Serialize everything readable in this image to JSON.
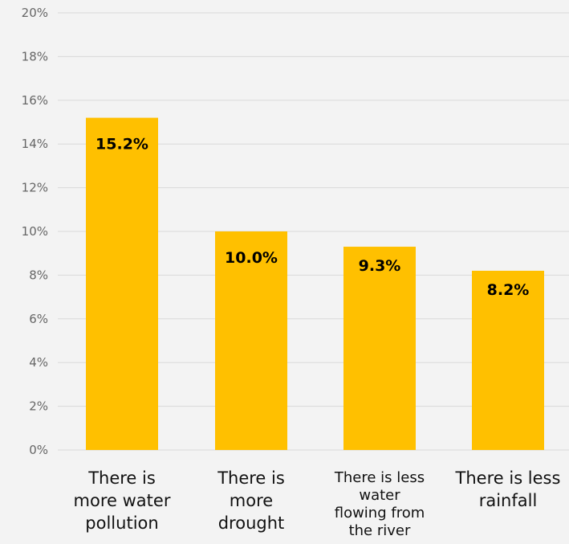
{
  "chart_data": {
    "type": "bar",
    "title": "",
    "xlabel": "",
    "ylabel": "",
    "ylim": [
      0,
      20
    ],
    "yticks": [
      "0%",
      "2%",
      "4%",
      "6%",
      "8%",
      "10%",
      "12%",
      "14%",
      "16%",
      "18%",
      "20%"
    ],
    "grid": true,
    "bar_color": "#ffc000",
    "categories": [
      [
        "There is",
        "more water",
        "pollution"
      ],
      [
        "There is",
        "more",
        "drought"
      ],
      [
        "There is less",
        "water",
        "flowing from",
        "the river"
      ],
      [
        "There is less",
        "rainfall"
      ]
    ],
    "values": [
      15.2,
      10.0,
      9.3,
      8.2
    ],
    "data_labels": [
      "15.2%",
      "10.0%",
      "9.3%",
      "8.2%"
    ]
  }
}
